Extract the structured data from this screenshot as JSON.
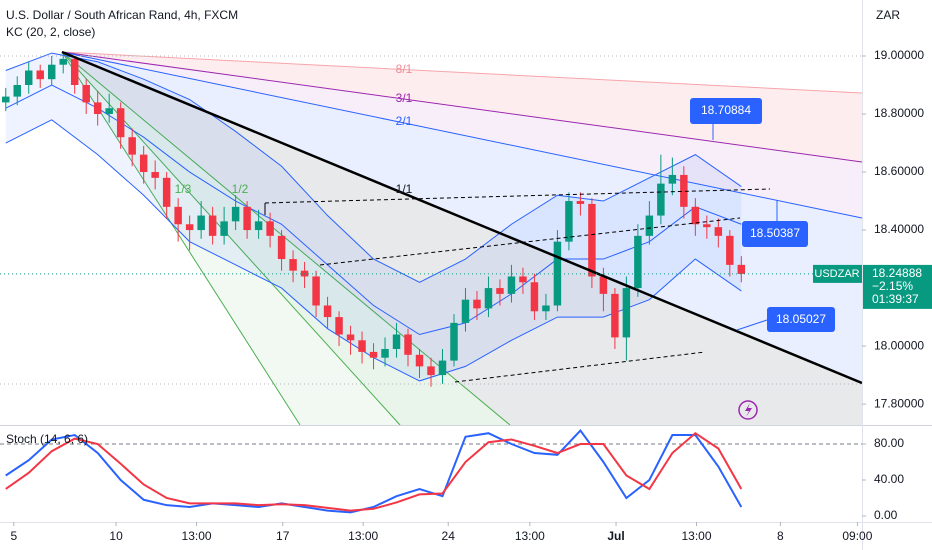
{
  "chart_data": [
    {
      "type": "candlestick",
      "title": "U.S. Dollar / South African Rand, 4h, FXCM",
      "indicator": "KC (20, 2, close)",
      "currency": "ZAR",
      "price_tag": {
        "symbol": "USDZAR",
        "price": "18.24888",
        "change": "−2.15%",
        "countdown": "01:39:37"
      },
      "annotations": [
        "18.70884",
        "18.50387",
        "18.05027"
      ],
      "fan_labels": [
        "8/1",
        "3/1",
        "2/1",
        "1/1",
        "1/2",
        "1/3"
      ],
      "up_color": "#089981",
      "down_color": "#f23645",
      "band_color": "#2962ff",
      "xlim": [
        -0.5,
        74.5
      ],
      "xticks": [
        {
          "value": 0.7,
          "label": "5"
        },
        {
          "value": 9.6,
          "label": "10"
        },
        {
          "value": 16.6,
          "label": "13:00"
        },
        {
          "value": 24.1,
          "label": "17"
        },
        {
          "value": 31.1,
          "label": "13:00"
        },
        {
          "value": 38.5,
          "label": "24"
        },
        {
          "value": 45.6,
          "label": "13:00"
        },
        {
          "value": 53.1,
          "label": "Jul"
        },
        {
          "value": 60.1,
          "label": "13:00"
        },
        {
          "value": 67.4,
          "label": "8"
        },
        {
          "value": 74.1,
          "label": "09:00"
        }
      ],
      "ylim": [
        17.728,
        19.193
      ],
      "yticks": [
        {
          "value": 19,
          "label": "19.00000"
        },
        {
          "value": 18.8,
          "label": "18.80000"
        },
        {
          "value": 18.6,
          "label": "18.60000"
        },
        {
          "value": 18.4,
          "label": "18.40000"
        },
        {
          "value": 18,
          "label": "18.00000"
        },
        {
          "value": 17.8,
          "label": "17.80000"
        }
      ],
      "open": [
        18.84,
        18.86,
        18.9,
        18.95,
        18.92,
        18.97,
        18.99,
        18.9,
        18.84,
        18.8,
        18.82,
        18.72,
        18.66,
        18.6,
        18.58,
        18.48,
        18.42,
        18.4,
        18.45,
        18.38,
        18.43,
        18.48,
        18.4,
        18.43,
        18.38,
        18.3,
        18.26,
        18.24,
        18.14,
        18.1,
        18.04,
        18.02,
        17.98,
        17.96,
        17.99,
        18.04,
        17.97,
        17.93,
        17.9,
        17.95,
        18.08,
        18.16,
        18.13,
        18.2,
        18.18,
        18.24,
        18.22,
        18.12,
        18.14,
        18.36,
        18.5,
        18.49,
        18.24,
        18.18,
        18.03,
        18.2,
        18.38,
        18.45,
        18.56,
        18.59,
        18.48,
        18.42,
        18.41,
        18.38,
        18.28
      ],
      "high": [
        18.89,
        18.93,
        18.98,
        18.97,
        19.0,
        19.01,
        19.0,
        18.92,
        18.88,
        18.87,
        18.84,
        18.75,
        18.69,
        18.64,
        18.6,
        18.51,
        18.45,
        18.5,
        18.48,
        18.48,
        18.52,
        18.5,
        18.47,
        18.46,
        18.4,
        18.33,
        18.29,
        18.26,
        18.17,
        18.12,
        18.07,
        18.05,
        18.01,
        18.03,
        18.08,
        18.06,
        17.99,
        17.96,
        17.99,
        18.11,
        18.2,
        18.19,
        18.24,
        18.23,
        18.28,
        18.27,
        18.25,
        18.18,
        18.4,
        18.53,
        18.53,
        18.51,
        18.27,
        18.2,
        18.24,
        18.42,
        18.5,
        18.66,
        18.65,
        18.62,
        18.51,
        18.45,
        18.44,
        18.4,
        18.31
      ],
      "low": [
        18.81,
        18.83,
        18.87,
        18.89,
        18.9,
        18.94,
        18.87,
        18.8,
        18.76,
        18.77,
        18.68,
        18.62,
        18.56,
        18.54,
        18.44,
        18.36,
        18.33,
        18.37,
        18.35,
        18.35,
        18.4,
        18.37,
        18.37,
        18.34,
        18.26,
        18.22,
        18.2,
        18.1,
        18.06,
        18.0,
        17.97,
        17.94,
        17.92,
        17.93,
        17.96,
        17.93,
        17.89,
        17.86,
        17.87,
        17.93,
        18.05,
        18.09,
        18.1,
        18.14,
        18.15,
        18.18,
        18.09,
        18.09,
        18.12,
        18.33,
        18.45,
        18.2,
        18.12,
        17.99,
        17.95,
        18.17,
        18.35,
        18.42,
        18.52,
        18.44,
        18.38,
        18.37,
        18.34,
        18.24,
        18.22
      ],
      "close": [
        18.86,
        18.9,
        18.95,
        18.92,
        18.97,
        18.99,
        18.9,
        18.84,
        18.8,
        18.82,
        18.72,
        18.66,
        18.6,
        18.58,
        18.48,
        18.42,
        18.4,
        18.45,
        18.38,
        18.43,
        18.48,
        18.4,
        18.43,
        18.38,
        18.3,
        18.26,
        18.24,
        18.14,
        18.1,
        18.04,
        18.02,
        17.98,
        17.96,
        17.99,
        18.04,
        17.97,
        17.93,
        17.9,
        17.95,
        18.08,
        18.16,
        18.13,
        18.2,
        18.18,
        18.24,
        18.22,
        18.12,
        18.14,
        18.36,
        18.5,
        18.49,
        18.24,
        18.18,
        18.03,
        18.2,
        18.38,
        18.45,
        18.56,
        18.59,
        18.48,
        18.42,
        18.41,
        18.38,
        18.28,
        18.24888
      ],
      "kc_x": [
        0,
        4,
        8,
        12,
        16,
        20,
        24,
        28,
        32,
        36,
        40,
        44,
        48,
        52,
        56,
        60,
        64
      ],
      "kc_upper": [
        18.95,
        19.01,
        18.98,
        18.92,
        18.85,
        18.74,
        18.62,
        18.45,
        18.3,
        18.22,
        18.3,
        18.42,
        18.52,
        18.5,
        18.58,
        18.66,
        18.55
      ],
      "kc_middle": [
        18.82,
        18.9,
        18.82,
        18.72,
        18.6,
        18.5,
        18.42,
        18.28,
        18.14,
        18.04,
        18.08,
        18.18,
        18.3,
        18.3,
        18.36,
        18.48,
        18.42
      ],
      "kc_lower": [
        18.7,
        18.78,
        18.66,
        18.52,
        18.36,
        18.28,
        18.2,
        18.06,
        17.96,
        17.88,
        17.93,
        18.02,
        18.1,
        18.1,
        18.16,
        18.3,
        18.19
      ]
    },
    {
      "type": "line",
      "title": "Stoch (14, 6, 6)",
      "xlim": [
        -0.5,
        74.5
      ],
      "ylim": [
        -6.7,
        97.8
      ],
      "yticks": [
        {
          "value": 80,
          "label": "80.00"
        },
        {
          "value": 40,
          "label": "40.00"
        },
        {
          "value": 0,
          "label": "0.00"
        }
      ],
      "x": [
        0,
        2,
        4,
        6,
        8,
        10,
        12,
        14,
        16,
        18,
        20,
        22,
        24,
        26,
        28,
        30,
        32,
        34,
        36,
        38,
        40,
        42,
        44,
        46,
        48,
        50,
        52,
        54,
        56,
        58,
        60,
        62,
        64
      ],
      "series": [
        {
          "color": "#2962ff",
          "values": [
            45,
            62,
            85,
            90,
            70,
            40,
            18,
            12,
            10,
            14,
            12,
            10,
            14,
            10,
            6,
            4,
            10,
            22,
            30,
            22,
            88,
            92,
            80,
            70,
            68,
            95,
            60,
            20,
            40,
            90,
            90,
            55,
            10
          ]
        },
        {
          "color": "#f23645",
          "values": [
            30,
            48,
            72,
            86,
            80,
            58,
            35,
            20,
            14,
            14,
            14,
            12,
            13,
            12,
            9,
            6,
            8,
            15,
            24,
            25,
            60,
            82,
            85,
            78,
            70,
            80,
            80,
            45,
            30,
            70,
            92,
            75,
            30
          ]
        }
      ]
    }
  ]
}
